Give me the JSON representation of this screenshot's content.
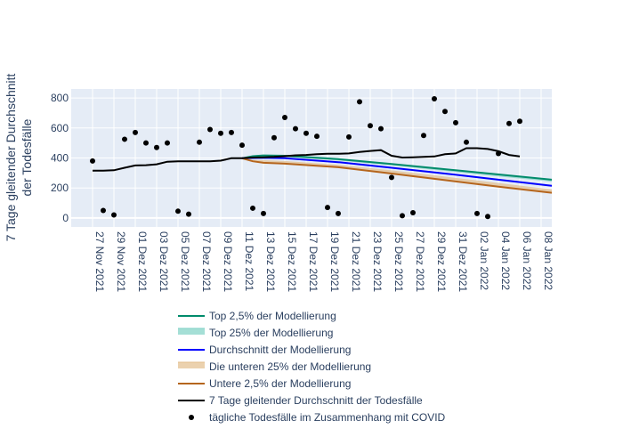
{
  "chart_data": {
    "type": "line",
    "ylabel": [
      "7 Tage gleitender Durchschnitt",
      "der Todesfälle"
    ],
    "ylim": [
      -60,
      860
    ],
    "yticks": [
      0,
      200,
      400,
      600,
      800
    ],
    "xlim": [
      "2021-11-25",
      "2022-01-09"
    ],
    "xticks": [
      {
        "date": "2021-11-27",
        "label": "27 Nov 2021"
      },
      {
        "date": "2021-11-29",
        "label": "29 Nov 2021"
      },
      {
        "date": "2021-12-01",
        "label": "01 Dez 2021"
      },
      {
        "date": "2021-12-03",
        "label": "03 Dez 2021"
      },
      {
        "date": "2021-12-05",
        "label": "05 Dez 2021"
      },
      {
        "date": "2021-12-07",
        "label": "07 Dez 2021"
      },
      {
        "date": "2021-12-09",
        "label": "09 Dez 2021"
      },
      {
        "date": "2021-12-11",
        "label": "11 Dez 2021"
      },
      {
        "date": "2021-12-13",
        "label": "13 Dez 2021"
      },
      {
        "date": "2021-12-15",
        "label": "15 Dez 2021"
      },
      {
        "date": "2021-12-17",
        "label": "17 Dez 2021"
      },
      {
        "date": "2021-12-19",
        "label": "19 Dez 2021"
      },
      {
        "date": "2021-12-21",
        "label": "21 Dez 2021"
      },
      {
        "date": "2021-12-23",
        "label": "23 Dez 2021"
      },
      {
        "date": "2021-12-25",
        "label": "25 Dez 2021"
      },
      {
        "date": "2021-12-27",
        "label": "27 Dez 2021"
      },
      {
        "date": "2021-12-29",
        "label": "29 Dez 2021"
      },
      {
        "date": "2021-12-31",
        "label": "31 Dez 2021"
      },
      {
        "date": "2022-01-02",
        "label": "02 Jan 2022"
      },
      {
        "date": "2022-01-04",
        "label": "04 Jan 2022"
      },
      {
        "date": "2022-01-06",
        "label": "06 Jan 2022"
      },
      {
        "date": "2022-01-08",
        "label": "08 Jan 2022"
      }
    ],
    "grid": true,
    "legend_position": "bottom",
    "colors": {
      "plot_bg": "#e5ecf6",
      "grid": "#ffffff",
      "top_2_5": "#008b6b",
      "top_25_fill": "#7fd1c4",
      "mean": "#0000ff",
      "bottom_25_fill": "#e3be8c",
      "bottom_2_5": "#b5651d",
      "rolling": "#000000",
      "points": "#000000"
    },
    "legend": [
      {
        "key": "top_2_5",
        "label": "Top 2,5% der Modellierung"
      },
      {
        "key": "top_25",
        "label": "Top 25% der Modellierung"
      },
      {
        "key": "mean",
        "label": "Durchschnitt der Modellierung"
      },
      {
        "key": "bottom_25",
        "label": "Die unteren 25% der Modellierung"
      },
      {
        "key": "bottom_2_5",
        "label": "Untere 2,5% der Modellierung"
      },
      {
        "key": "rolling",
        "label": "7 Tage gleitender Durchschnitt der Todesfälle"
      },
      {
        "key": "points",
        "label": "tägliche Todesfälle im Zusammenhang mit COVID"
      }
    ],
    "daily_deaths": [
      {
        "date": "2021-11-27",
        "y": 380
      },
      {
        "date": "2021-11-28",
        "y": 50
      },
      {
        "date": "2021-11-29",
        "y": 20
      },
      {
        "date": "2021-11-30",
        "y": 525
      },
      {
        "date": "2021-12-01",
        "y": 570
      },
      {
        "date": "2021-12-02",
        "y": 500
      },
      {
        "date": "2021-12-03",
        "y": 470
      },
      {
        "date": "2021-12-04",
        "y": 500
      },
      {
        "date": "2021-12-05",
        "y": 45
      },
      {
        "date": "2021-12-06",
        "y": 25
      },
      {
        "date": "2021-12-07",
        "y": 505
      },
      {
        "date": "2021-12-08",
        "y": 590
      },
      {
        "date": "2021-12-09",
        "y": 565
      },
      {
        "date": "2021-12-10",
        "y": 570
      },
      {
        "date": "2021-12-11",
        "y": 485
      },
      {
        "date": "2021-12-12",
        "y": 65
      },
      {
        "date": "2021-12-13",
        "y": 30
      },
      {
        "date": "2021-12-14",
        "y": 535
      },
      {
        "date": "2021-12-15",
        "y": 670
      },
      {
        "date": "2021-12-16",
        "y": 595
      },
      {
        "date": "2021-12-17",
        "y": 565
      },
      {
        "date": "2021-12-18",
        "y": 545
      },
      {
        "date": "2021-12-19",
        "y": 70
      },
      {
        "date": "2021-12-20",
        "y": 30
      },
      {
        "date": "2021-12-21",
        "y": 540
      },
      {
        "date": "2021-12-22",
        "y": 775
      },
      {
        "date": "2021-12-23",
        "y": 615
      },
      {
        "date": "2021-12-24",
        "y": 595
      },
      {
        "date": "2021-12-25",
        "y": 270
      },
      {
        "date": "2021-12-26",
        "y": 15
      },
      {
        "date": "2021-12-27",
        "y": 35
      },
      {
        "date": "2021-12-28",
        "y": 550
      },
      {
        "date": "2021-12-29",
        "y": 795
      },
      {
        "date": "2021-12-30",
        "y": 710
      },
      {
        "date": "2021-12-31",
        "y": 635
      },
      {
        "date": "2022-01-01",
        "y": 505
      },
      {
        "date": "2022-01-02",
        "y": 30
      },
      {
        "date": "2022-01-03",
        "y": 10
      },
      {
        "date": "2022-01-04",
        "y": 430
      },
      {
        "date": "2022-01-05",
        "y": 630
      },
      {
        "date": "2022-01-06",
        "y": 645
      }
    ],
    "rolling_avg": [
      {
        "date": "2021-11-27",
        "y": 315
      },
      {
        "date": "2021-11-28",
        "y": 316
      },
      {
        "date": "2021-11-29",
        "y": 318
      },
      {
        "date": "2021-11-30",
        "y": 335
      },
      {
        "date": "2021-12-01",
        "y": 350
      },
      {
        "date": "2021-12-02",
        "y": 352
      },
      {
        "date": "2021-12-03",
        "y": 358
      },
      {
        "date": "2021-12-04",
        "y": 375
      },
      {
        "date": "2021-12-05",
        "y": 378
      },
      {
        "date": "2021-12-06",
        "y": 378
      },
      {
        "date": "2021-12-07",
        "y": 378
      },
      {
        "date": "2021-12-08",
        "y": 378
      },
      {
        "date": "2021-12-09",
        "y": 382
      },
      {
        "date": "2021-12-10",
        "y": 398
      },
      {
        "date": "2021-12-11",
        "y": 398
      },
      {
        "date": "2021-12-12",
        "y": 403
      },
      {
        "date": "2021-12-13",
        "y": 405
      },
      {
        "date": "2021-12-14",
        "y": 407
      },
      {
        "date": "2021-12-15",
        "y": 412
      },
      {
        "date": "2021-12-16",
        "y": 418
      },
      {
        "date": "2021-12-17",
        "y": 420
      },
      {
        "date": "2021-12-18",
        "y": 425
      },
      {
        "date": "2021-12-19",
        "y": 428
      },
      {
        "date": "2021-12-20",
        "y": 428
      },
      {
        "date": "2021-12-21",
        "y": 430
      },
      {
        "date": "2021-12-22",
        "y": 440
      },
      {
        "date": "2021-12-23",
        "y": 447
      },
      {
        "date": "2021-12-24",
        "y": 452
      },
      {
        "date": "2021-12-25",
        "y": 415
      },
      {
        "date": "2021-12-26",
        "y": 403
      },
      {
        "date": "2021-12-27",
        "y": 405
      },
      {
        "date": "2021-12-28",
        "y": 407
      },
      {
        "date": "2021-12-29",
        "y": 410
      },
      {
        "date": "2021-12-30",
        "y": 425
      },
      {
        "date": "2021-12-31",
        "y": 430
      },
      {
        "date": "2022-01-01",
        "y": 465
      },
      {
        "date": "2022-01-02",
        "y": 465
      },
      {
        "date": "2022-01-03",
        "y": 460
      },
      {
        "date": "2022-01-04",
        "y": 445
      },
      {
        "date": "2022-01-05",
        "y": 420
      },
      {
        "date": "2022-01-06",
        "y": 410
      }
    ],
    "model": {
      "dates": [
        "2021-12-11",
        "2021-12-12",
        "2021-12-13",
        "2021-12-15",
        "2021-12-20",
        "2021-12-25",
        "2021-12-30",
        "2022-01-04",
        "2022-01-09"
      ],
      "top_2_5": [
        398,
        412,
        417,
        415,
        392,
        360,
        325,
        290,
        255
      ],
      "top_25": [
        398,
        405,
        410,
        408,
        383,
        350,
        313,
        277,
        242
      ],
      "mean": [
        398,
        400,
        401,
        398,
        372,
        335,
        296,
        255,
        215
      ],
      "bottom_25": [
        398,
        388,
        385,
        380,
        355,
        318,
        276,
        233,
        190
      ],
      "bottom_2_5": [
        398,
        378,
        368,
        362,
        338,
        296,
        252,
        208,
        168
      ]
    }
  }
}
